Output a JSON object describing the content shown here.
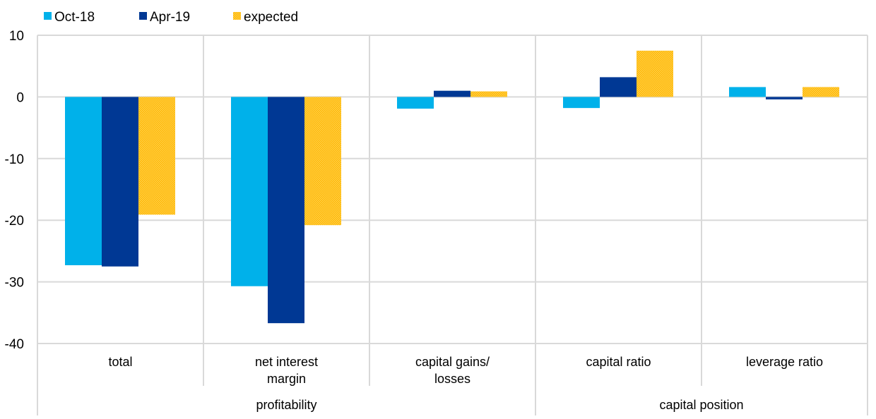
{
  "chart_data": {
    "type": "bar",
    "title": "",
    "xlabel": "",
    "ylabel": "",
    "ylim": [
      -40,
      10
    ],
    "yticks": [
      10,
      0,
      -10,
      -20,
      -30,
      -40
    ],
    "grid": true,
    "legend_position": "top-left",
    "categories": [
      "total",
      "net interest margin",
      "capital gains/ losses",
      "capital ratio",
      "leverage ratio"
    ],
    "category_lines": [
      [
        "total"
      ],
      [
        "net interest",
        "margin"
      ],
      [
        "capital gains/",
        "losses"
      ],
      [
        "capital ratio"
      ],
      [
        "leverage ratio"
      ]
    ],
    "groups": [
      {
        "label": "profitability",
        "span": [
          0,
          2
        ]
      },
      {
        "label": "capital position",
        "span": [
          3,
          4
        ]
      }
    ],
    "series": [
      {
        "name": "Oct-18",
        "color": "#00b1ea",
        "pattern": "solid",
        "values": [
          -27.3,
          -30.7,
          -1.9,
          -1.8,
          1.6
        ]
      },
      {
        "name": "Apr-19",
        "color": "#003894",
        "pattern": "solid",
        "values": [
          -27.5,
          -36.7,
          1.0,
          3.2,
          -0.4
        ]
      },
      {
        "name": "expected",
        "color": "#ffb400",
        "pattern": "dotted",
        "values": [
          -19.1,
          -20.8,
          0.9,
          7.5,
          1.6
        ]
      }
    ]
  }
}
